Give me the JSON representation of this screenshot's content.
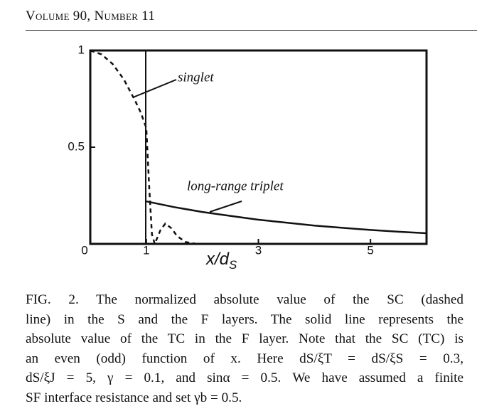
{
  "header": {
    "title": "Volume 90, Number 11"
  },
  "chart_data": {
    "type": "line",
    "xlabel": "x/d",
    "xlabel_subscript": "S",
    "xlim": [
      0,
      6
    ],
    "ylim": [
      0,
      1
    ],
    "xticks": [
      0,
      1,
      3,
      5
    ],
    "yticks": [
      0.5,
      1
    ],
    "series": [
      {
        "name": "singlet",
        "color": "#111111",
        "dashed": true,
        "x": [
          0,
          0.2,
          0.4,
          0.6,
          0.8,
          0.9,
          1.0,
          1.05,
          1.1,
          1.15,
          1.25,
          1.34,
          1.45,
          1.55,
          1.7,
          1.9
        ],
        "values": [
          1.0,
          0.98,
          0.93,
          0.85,
          0.74,
          0.68,
          0.6,
          0.3,
          0.05,
          0.0,
          0.07,
          0.105,
          0.08,
          0.04,
          0.01,
          0.0
        ]
      },
      {
        "name": "long-range triplet",
        "color": "#111111",
        "dashed": false,
        "x": [
          1,
          1.5,
          2,
          2.5,
          3,
          3.5,
          4,
          4.5,
          5,
          5.5,
          6
        ],
        "values": [
          0.22,
          0.19,
          0.165,
          0.145,
          0.125,
          0.11,
          0.095,
          0.083,
          0.072,
          0.063,
          0.055
        ]
      }
    ]
  },
  "caption": {
    "lines": [
      "FIG. 2.  The normalized absolute value of the SC (dashed",
      "line) in the S and the F layers. The solid line represents the",
      "absolute value of the TC in the F layer. Note that the SC (TC) is",
      "an even (odd) function of x.  Here  dS/ξT = dS/ξS = 0.3,",
      "dS/ξJ = 5, γ = 0.1, and sinα = 0.5. We have assumed a finite",
      "SF interface resistance and set γb = 0.5."
    ]
  }
}
